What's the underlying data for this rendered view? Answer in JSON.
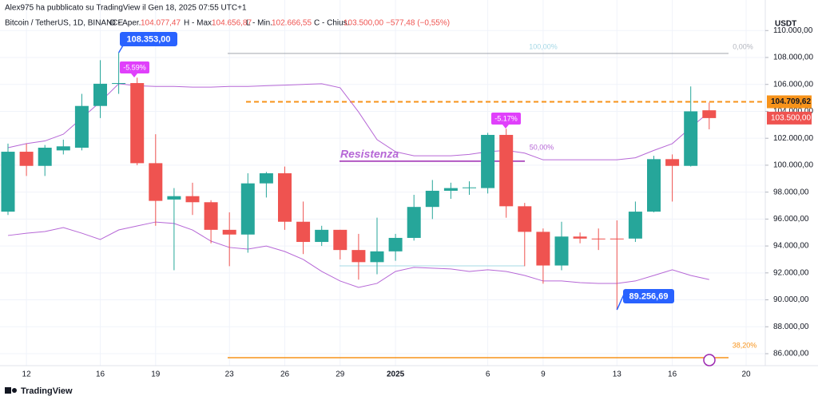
{
  "header": {
    "author_line": "Alex975 ha pubblicato su TradingView il Gen 18, 2025 07:55 UTC+1",
    "symbol": "Bitcoin / TetherUS, 1D, BINANCE",
    "open_label": "O - Aper.",
    "open_value": "104.077,47",
    "high_label": "H - Max.",
    "high_value": "104.656,87",
    "low_label": "L - Min.",
    "low_value": "102.666,55",
    "close_label": "C - Chius.",
    "close_value": "103.500,00",
    "change": "−577,48 (−0,55%)"
  },
  "footer": {
    "brand": "TradingView"
  },
  "chart_data": {
    "type": "candlestick",
    "currency": "USDT",
    "categories": [
      null,
      "12",
      null,
      null,
      null,
      "16",
      null,
      null,
      "19",
      null,
      null,
      null,
      "23",
      null,
      null,
      "26",
      null,
      null,
      "29",
      null,
      null,
      "2025",
      null,
      null,
      null,
      null,
      "6",
      null,
      null,
      "9",
      null,
      null,
      null,
      "13",
      null,
      null,
      "16",
      null,
      null,
      null,
      "20"
    ],
    "open": [
      96550,
      101000,
      99950,
      101100,
      101300,
      104400,
      106050,
      106100,
      100150,
      97450,
      97700,
      97250,
      95200,
      94850,
      98650,
      99400,
      95800,
      94300,
      95200,
      93700,
      92800,
      93600,
      94600,
      96900,
      98100,
      98300,
      98300,
      102250,
      96950,
      95050,
      92550,
      94700,
      94550,
      94550,
      94550,
      96550,
      100450,
      99950,
      104077.47,
      null,
      null
    ],
    "high": [
      101600,
      101600,
      101500,
      101900,
      105300,
      107800,
      108353,
      106500,
      102300,
      98300,
      98700,
      97400,
      96500,
      99400,
      99500,
      99900,
      97300,
      95500,
      95200,
      94900,
      96100,
      94900,
      97800,
      98900,
      98700,
      98800,
      102400,
      102700,
      97200,
      95300,
      95800,
      95000,
      95300,
      95900,
      97300,
      100700,
      100800,
      105850,
      104656.87,
      null,
      null
    ],
    "low": [
      96300,
      99200,
      99200,
      100800,
      101100,
      103500,
      105300,
      100000,
      95500,
      92200,
      96300,
      94200,
      92500,
      93500,
      97600,
      95200,
      93400,
      94000,
      93000,
      91500,
      91900,
      92900,
      94400,
      96000,
      97500,
      97800,
      97900,
      96100,
      92500,
      91200,
      92200,
      94200,
      93700,
      89256.69,
      94300,
      96500,
      97300,
      99900,
      102666.55,
      null,
      null
    ],
    "close": [
      101000,
      99950,
      101300,
      101400,
      104400,
      106050,
      106100,
      100150,
      97350,
      97700,
      97250,
      95200,
      94850,
      98650,
      99400,
      95800,
      94300,
      95200,
      93700,
      92800,
      93600,
      94600,
      96900,
      98100,
      98300,
      98350,
      102250,
      96950,
      95050,
      92550,
      94700,
      94550,
      94500,
      94500,
      96550,
      100450,
      99950,
      104000,
      103500,
      null,
      null
    ],
    "up_color": "#26a69a",
    "down_color": "#ef5350",
    "bands": {
      "color": "#b667d6",
      "upper": [
        101300,
        101600,
        101800,
        102300,
        103500,
        104700,
        106050,
        105900,
        105850,
        105850,
        105800,
        105800,
        105850,
        105850,
        105900,
        105950,
        106000,
        106050,
        105750,
        103950,
        101900,
        101000,
        100700,
        100700,
        100700,
        100800,
        101000,
        101100,
        100900,
        100400,
        100400,
        100400,
        100400,
        100400,
        100550,
        101100,
        101600,
        102800,
        103950,
        null,
        null
      ],
      "lower": [
        94780,
        94950,
        95070,
        95370,
        94950,
        94480,
        95190,
        95490,
        95780,
        95670,
        95190,
        94360,
        93890,
        93770,
        94000,
        93590,
        93000,
        92110,
        91400,
        90920,
        91220,
        92110,
        92410,
        92350,
        92290,
        92110,
        92230,
        92110,
        91810,
        91400,
        91400,
        91280,
        91220,
        91220,
        91400,
        91810,
        92230,
        91810,
        91510,
        null,
        null
      ]
    },
    "ylim": [
      85110,
      112270
    ],
    "yticks": [
      {
        "value": 86000,
        "label": "86.000,00"
      },
      {
        "value": 88000,
        "label": "88.000,00"
      },
      {
        "value": 90000,
        "label": "90.000,00"
      },
      {
        "value": 92000,
        "label": "92.000,00"
      },
      {
        "value": 94000,
        "label": "94.000,00"
      },
      {
        "value": 96000,
        "label": "96.000,00"
      },
      {
        "value": 98000,
        "label": "98.000,00"
      },
      {
        "value": 100000,
        "label": "100.000,00"
      },
      {
        "value": 102000,
        "label": "102.000,00"
      },
      {
        "value": 104000,
        "label": "104.000,00"
      },
      {
        "value": 106000,
        "label": "106.000,00"
      },
      {
        "value": 108000,
        "label": "108.000,00"
      },
      {
        "value": 110000,
        "label": "110.000,00"
      }
    ],
    "grid": true,
    "price_line": {
      "value": 104709.62,
      "label": "104.709,62",
      "color": "#f7931a"
    },
    "last_price": {
      "value": 103500,
      "label": "103.500,00"
    },
    "callouts": [
      {
        "value": 108353,
        "label": "108.353,00"
      },
      {
        "value": 89256.69,
        "label": "89.256,69"
      }
    ],
    "percent_tags": [
      {
        "value": -5.59,
        "label": "-5.59%"
      },
      {
        "value": -5.17,
        "label": "-5.17%"
      }
    ],
    "resistance": {
      "label": "Resistenza",
      "value": 100300
    },
    "fib": {
      "top": 108300,
      "bottom": 85700,
      "levels": [
        {
          "value": 100,
          "label": "100,00%"
        },
        {
          "value": 0,
          "label": "0,00%"
        },
        {
          "value": 50,
          "label": "50,00%"
        },
        {
          "value": 38.2,
          "label": "38,20%"
        }
      ]
    }
  }
}
